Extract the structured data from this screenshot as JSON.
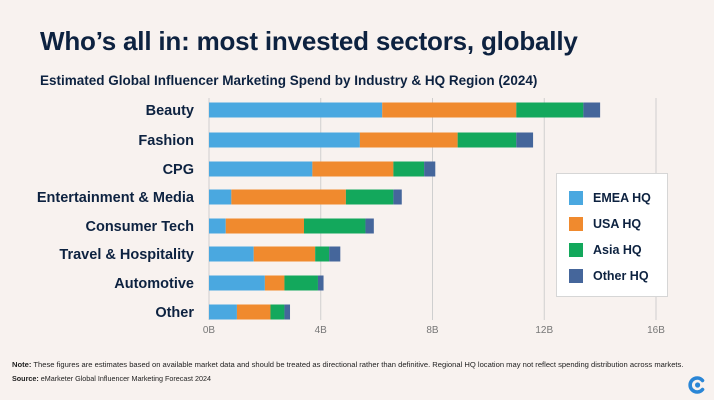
{
  "title": "Who’s all in: most invested sectors, globally",
  "subtitle": "Estimated Global Influencer Marketing Spend by Industry & HQ Region (2024)",
  "note_label": "Note:",
  "note_text": "These figures are estimates based on available market data and should be treated as directional rather than definitive. Regional HQ location may not reflect spending distribution across markets.",
  "source_label": "Source:",
  "source_text": "eMarketer Global Influencer Marketing Forecast 2024",
  "logo_icon": "emarketer-logo-icon",
  "chart_data": {
    "type": "bar",
    "orientation": "horizontal",
    "stacked": true,
    "categories": [
      "Beauty",
      "Fashion",
      "CPG",
      "Entertainment & Media",
      "Consumer Tech",
      "Travel & Hospitality",
      "Automotive",
      "Other"
    ],
    "series": [
      {
        "name": "EMEA HQ",
        "color": "#4aa8e0",
        "values": [
          6.2,
          5.4,
          3.7,
          0.8,
          0.6,
          1.6,
          2.0,
          1.0
        ]
      },
      {
        "name": "USA HQ",
        "color": "#f08a2e",
        "values": [
          4.8,
          3.5,
          2.9,
          4.1,
          2.8,
          2.2,
          0.7,
          1.2
        ]
      },
      {
        "name": "Asia HQ",
        "color": "#13a85c",
        "values": [
          2.4,
          2.1,
          1.1,
          1.7,
          2.2,
          0.5,
          1.2,
          0.5
        ]
      },
      {
        "name": "Other HQ",
        "color": "#45669b",
        "values": [
          0.6,
          0.6,
          0.4,
          0.3,
          0.3,
          0.4,
          0.2,
          0.2
        ]
      }
    ],
    "x_ticks": [
      "0B",
      "4B",
      "8B",
      "12B",
      "16B"
    ],
    "xlim": [
      0,
      16
    ],
    "grid": "vertical",
    "legend_position": "right"
  }
}
